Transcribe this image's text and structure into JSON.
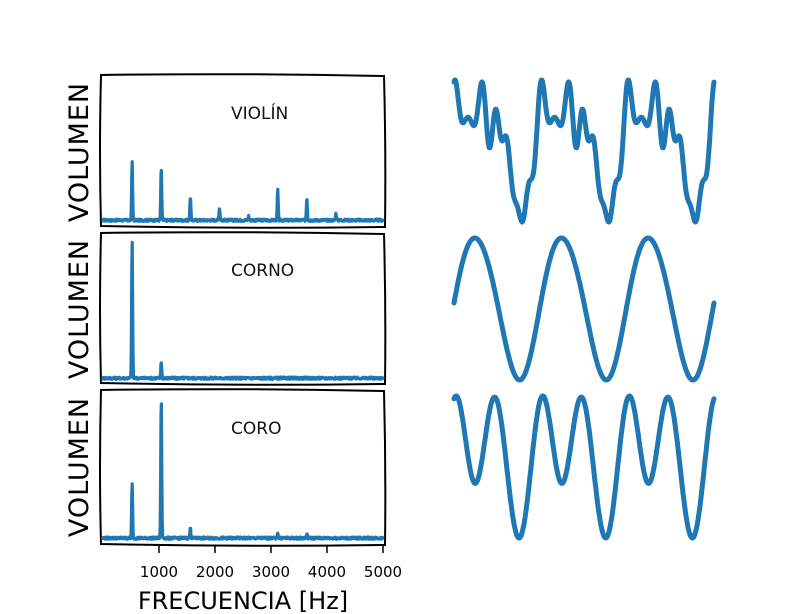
{
  "chart_data": [
    {
      "type": "line",
      "title": "VIOLÍN",
      "ylabel": "VOLUMEN",
      "xlim": [
        0,
        5000
      ],
      "peaks": [
        {
          "x": 520,
          "y": 0.42
        },
        {
          "x": 1040,
          "y": 0.38
        },
        {
          "x": 1560,
          "y": 0.17
        },
        {
          "x": 2080,
          "y": 0.09
        },
        {
          "x": 2600,
          "y": 0.03
        },
        {
          "x": 3120,
          "y": 0.22
        },
        {
          "x": 3640,
          "y": 0.16
        },
        {
          "x": 4160,
          "y": 0.05
        }
      ],
      "baseline": 0.02
    },
    {
      "type": "line",
      "title": "CORNO",
      "ylabel": "VOLUMEN",
      "xlim": [
        0,
        5000
      ],
      "peaks": [
        {
          "x": 520,
          "y": 0.98
        },
        {
          "x": 1040,
          "y": 0.12
        }
      ],
      "baseline": 0.02
    },
    {
      "type": "line",
      "title": "CORO",
      "ylabel": "VOLUMEN",
      "xlabel": "FRECUENCIA [Hz]",
      "xlim": [
        0,
        5000
      ],
      "xticks": [
        1000,
        2000,
        3000,
        4000,
        5000
      ],
      "xtick_labels": [
        "1000",
        "2000",
        "3000",
        "4000",
        "5000"
      ],
      "peaks": [
        {
          "x": 520,
          "y": 0.38
        },
        {
          "x": 1040,
          "y": 0.98
        },
        {
          "x": 1560,
          "y": 0.07
        },
        {
          "x": 3120,
          "y": 0.04
        },
        {
          "x": 3640,
          "y": 0.03
        }
      ],
      "baseline": 0.02
    },
    {
      "type": "line",
      "name": "waveforms",
      "series": [
        {
          "harmonics": [
            [
              1,
              1.0,
              0
            ],
            [
              2,
              0.55,
              1.3
            ],
            [
              3,
              0.35,
              2.1
            ],
            [
              4,
              0.2,
              0.6
            ],
            [
              6,
              0.25,
              1.8
            ],
            [
              7,
              0.18,
              0.3
            ],
            [
              8,
              0.12,
              2.5
            ]
          ]
        },
        {
          "harmonics": [
            [
              1,
              1.0,
              0
            ],
            [
              2,
              0.05,
              1.0
            ]
          ]
        },
        {
          "harmonics": [
            [
              1,
              0.55,
              0
            ],
            [
              2,
              1.0,
              1.6
            ],
            [
              3,
              0.06,
              0.4
            ]
          ]
        }
      ],
      "cycles": 3
    }
  ]
}
